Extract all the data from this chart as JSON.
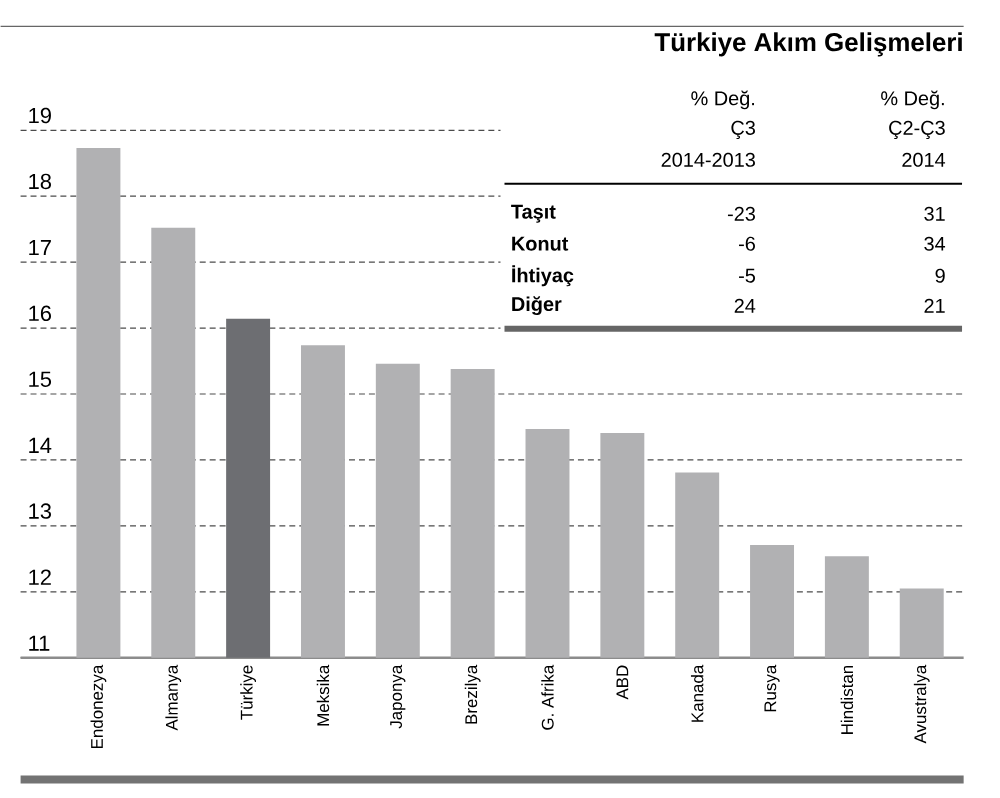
{
  "chart_data": [
    {
      "type": "bar",
      "categories": [
        "Endonezya",
        "Almanya",
        "Türkiye",
        "Meksika",
        "Japonya",
        "Brezilya",
        "G. Afrika",
        "ABD",
        "Kanada",
        "Rusya",
        "Hindistan",
        "Avustralya"
      ],
      "values": [
        18.73,
        17.52,
        16.14,
        15.74,
        15.46,
        15.38,
        14.47,
        14.41,
        13.81,
        12.71,
        12.54,
        12.05
      ],
      "colors": [
        "#b1b1b3",
        "#b1b1b3",
        "#6d6e72",
        "#b1b1b3",
        "#b1b1b3",
        "#b1b1b3",
        "#b1b1b3",
        "#b1b1b3",
        "#b1b1b3",
        "#b1b1b3",
        "#b1b1b3",
        "#b1b1b3"
      ],
      "ylim": [
        11,
        19
      ],
      "yticks": [
        11,
        12,
        13,
        14,
        15,
        16,
        17,
        18,
        19
      ],
      "grid": "y"
    },
    {
      "type": "other",
      "title": "Türkiye Akım Gelişmeleri",
      "annotations": [
        "% Değ.",
        "% Değ.",
        "Ç3",
        "Ç2-Ç3",
        "2014-2013",
        "2014",
        "Taşıt",
        "-23",
        "31",
        "Konut",
        "-6",
        "34",
        "İhtiyaç",
        "-5",
        "9",
        "Diğer",
        "24",
        "21"
      ]
    }
  ]
}
